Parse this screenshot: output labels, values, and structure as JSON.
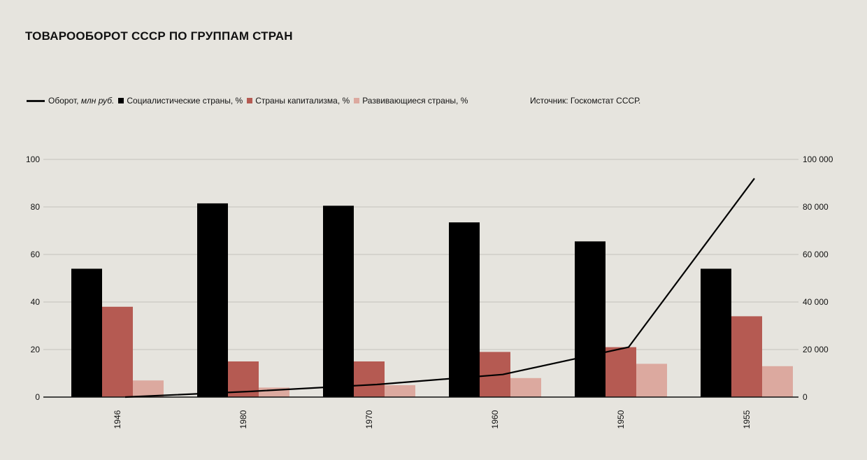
{
  "title": "ТОВАРООБОРОТ СССР ПО ГРУППАМ СТРАН",
  "source": "Источник: Госкомстат СССР.",
  "legend": {
    "line_label_prefix": "Оборот, ",
    "line_label_units": "млн руб.",
    "socialist": "Социалистические страны, %",
    "capitalist": "Страны капитализма, %",
    "developing": "Развивающиеся страны, %"
  },
  "colors": {
    "background": "#e6e4de",
    "socialist": "#000000",
    "capitalist": "#b55a52",
    "developing": "#dca99f",
    "line": "#000000",
    "grid": "#c4c2bc"
  },
  "chart_data": {
    "type": "bar",
    "title": "ТОВАРООБОРОТ СССР ПО ГРУППАМ СТРАН",
    "categories": [
      "1946",
      "1980",
      "1970",
      "1960",
      "1950",
      "1955"
    ],
    "series": [
      {
        "name": "Социалистические страны, %",
        "values": [
          54,
          81.5,
          80.5,
          73.5,
          65.5,
          54
        ]
      },
      {
        "name": "Страны капитализма, %",
        "values": [
          38,
          15,
          15,
          19,
          21,
          34
        ]
      },
      {
        "name": "Развивающиеся страны, %",
        "values": [
          7,
          4,
          5,
          8,
          14,
          13
        ]
      }
    ],
    "line_series": {
      "name": "Оборот, млн руб.",
      "values": [
        0,
        2400,
        5300,
        9500,
        21000,
        92000
      ]
    },
    "ylim": [
      0,
      100
    ],
    "y_ticks": [
      "0",
      "20",
      "40",
      "60",
      "80",
      "100"
    ],
    "y2lim": [
      0,
      100000
    ],
    "y2_ticks": [
      "0",
      "20 000",
      "40 000",
      "60 000",
      "80 000",
      "100 000"
    ],
    "grid": true,
    "legend_position": "top-left"
  }
}
